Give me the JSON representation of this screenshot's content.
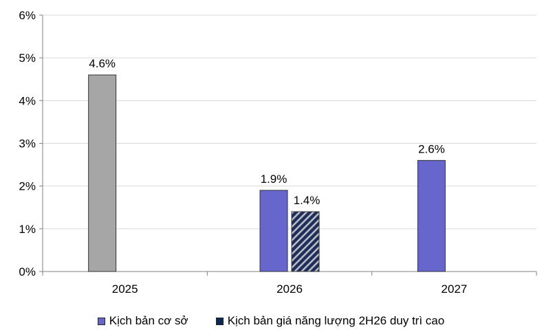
{
  "chart_data": {
    "type": "bar",
    "categories": [
      "2025",
      "2026",
      "2027"
    ],
    "yticks": [
      "0%",
      "1%",
      "2%",
      "3%",
      "4%",
      "5%",
      "6%"
    ],
    "ylim": [
      0,
      6
    ],
    "grid": true,
    "legend_position": "bottom",
    "bars": [
      {
        "category": "2025",
        "series": "history",
        "value": 4.6,
        "label": "4.6%",
        "color": "#a6a6a6",
        "pattern": "solid"
      },
      {
        "category": "2026",
        "series": "base",
        "value": 1.9,
        "label": "1.9%",
        "color": "#6666cc",
        "pattern": "solid"
      },
      {
        "category": "2026",
        "series": "high_energy",
        "value": 1.4,
        "label": "1.4%",
        "color": "#1f2d5a",
        "pattern": "diagonal-stripes"
      },
      {
        "category": "2027",
        "series": "base",
        "value": 2.6,
        "label": "2.6%",
        "color": "#6666cc",
        "pattern": "solid"
      }
    ],
    "series": [
      {
        "key": "base",
        "name": "Kịch bản cơ sở",
        "color": "#6666cc"
      },
      {
        "key": "high_energy",
        "name": "Kịch bản giá năng lượng 2H26 duy trì cao",
        "color": "#0f2757"
      }
    ]
  }
}
